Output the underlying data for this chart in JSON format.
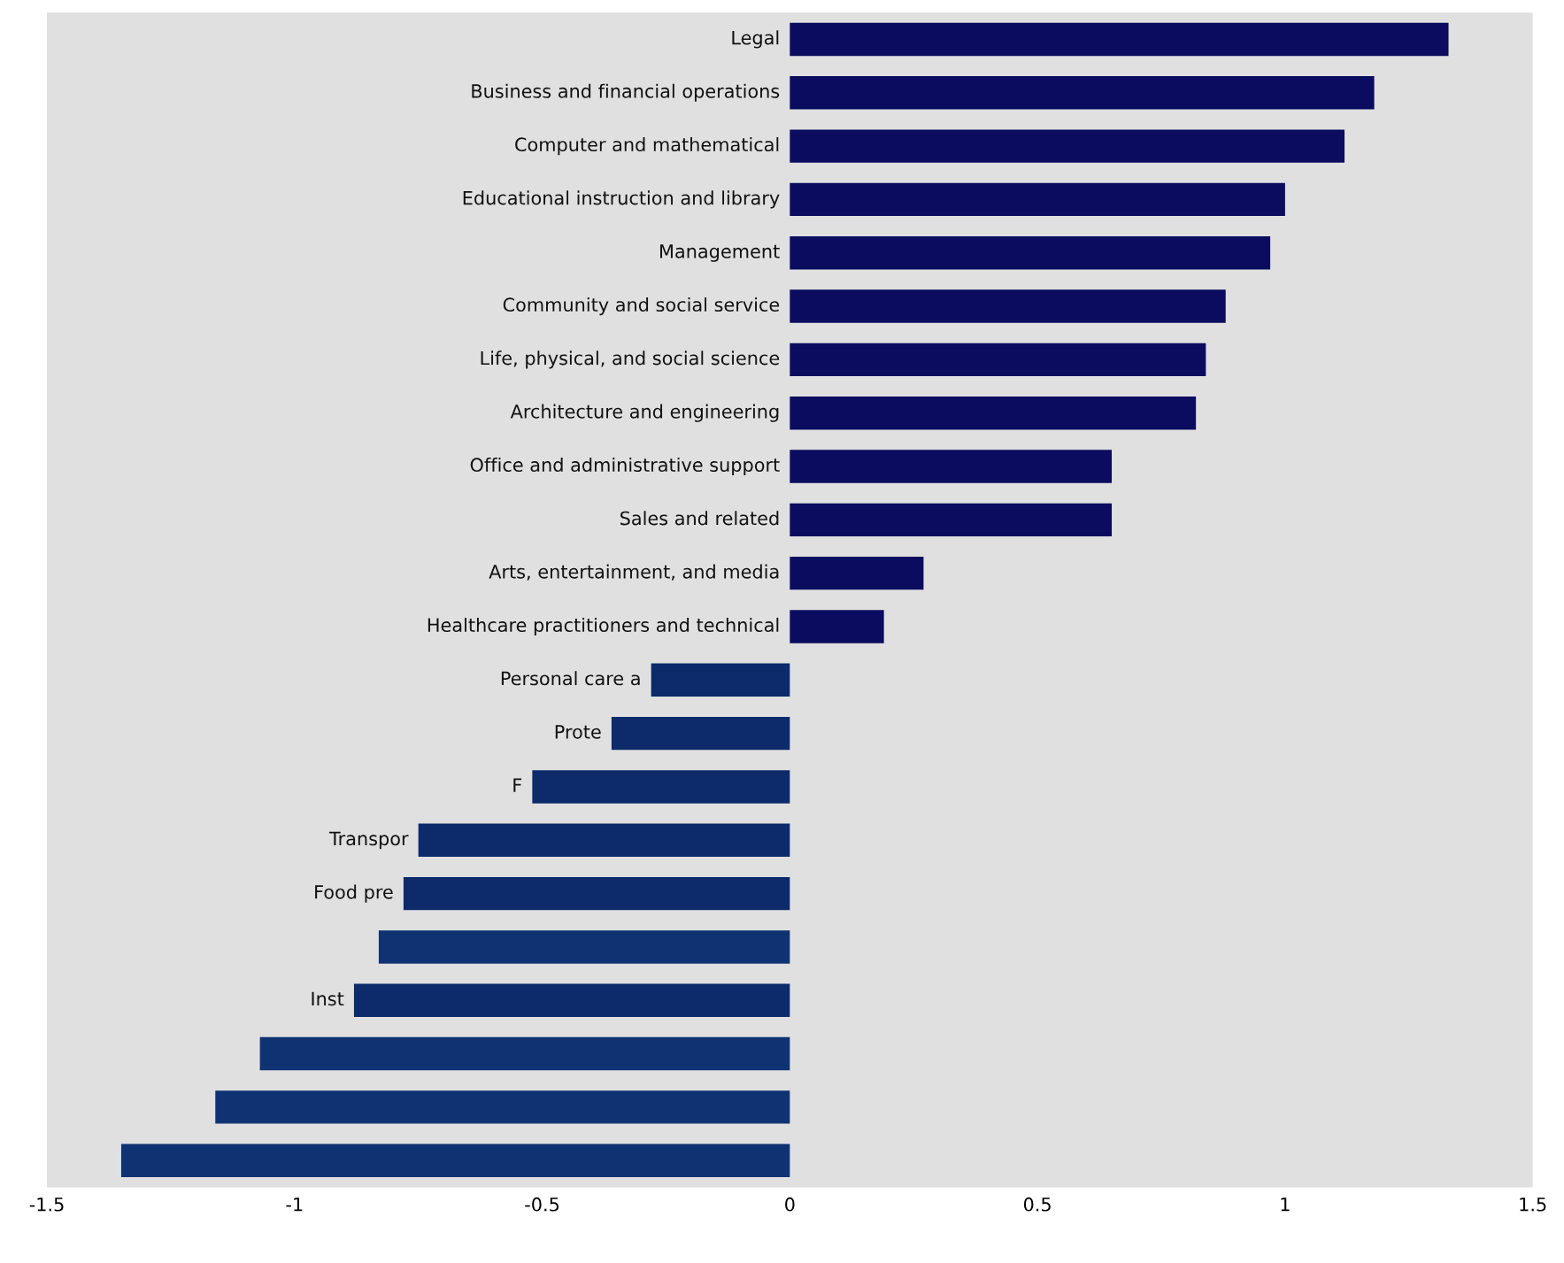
{
  "chart_data": {
    "type": "bar",
    "orientation": "horizontal",
    "categories": [
      "Legal",
      "Business and financial operations",
      "Computer and mathematical",
      "Educational instruction and library",
      "Management",
      "Community and social service",
      "Life, physical, and social science",
      "Architecture and engineering",
      "Office and administrative support",
      "Sales and related",
      "Arts, entertainment, and media",
      "Healthcare practitioners and technical",
      "Personal care a",
      "Prote",
      "F",
      "Transpor",
      "Food pre",
      null,
      "Inst",
      null,
      null,
      null
    ],
    "values": [
      1.33,
      1.18,
      1.12,
      1.0,
      0.97,
      0.88,
      0.84,
      0.82,
      0.65,
      0.65,
      0.27,
      0.19,
      -0.28,
      -0.36,
      -0.52,
      -0.75,
      -0.78,
      -0.83,
      -0.88,
      -1.07,
      -1.16,
      -1.35
    ],
    "colors": [
      "#0b0b5f",
      "#0b0b5f",
      "#0b0b5f",
      "#0b0b5f",
      "#0b0b5f",
      "#0b0b5f",
      "#0b0b5f",
      "#0b0b5f",
      "#0b0b5f",
      "#0b0b5f",
      "#0b0b5f",
      "#0b0b5f",
      "#0d2a6a",
      "#0d2a6a",
      "#0d2a6a",
      "#0d2a6a",
      "#0d2a6a",
      "#0f3272",
      "#0d2a6a",
      "#0f3272",
      "#0f3272",
      "#0f3272"
    ],
    "xlim": [
      -1.5,
      1.5
    ],
    "xticks": [
      -1.5,
      -1,
      -0.5,
      0,
      0.5,
      1,
      1.5
    ],
    "grid": false
  }
}
